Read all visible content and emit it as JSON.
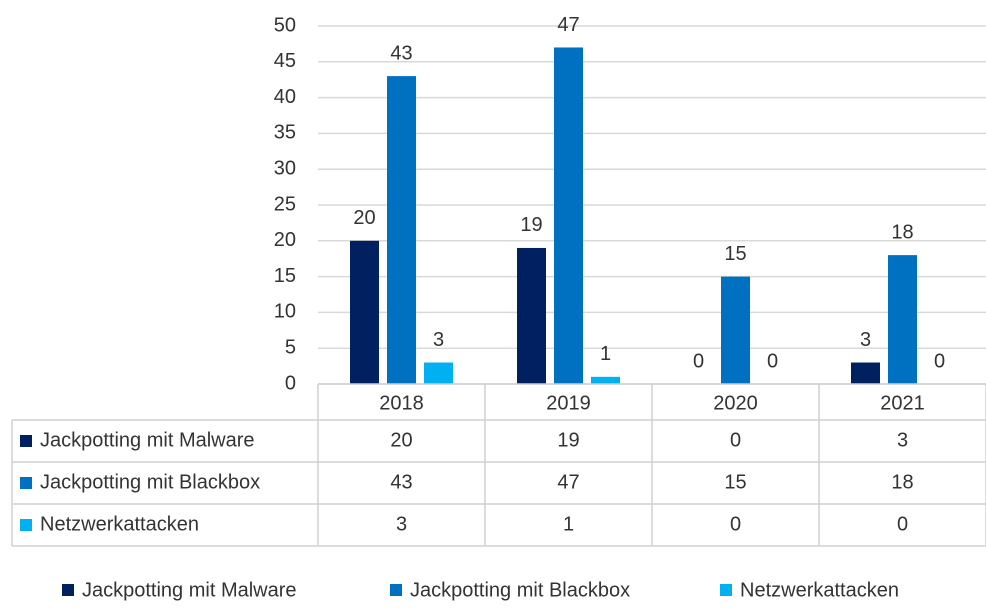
{
  "chart_data": {
    "type": "bar",
    "categories": [
      "2018",
      "2019",
      "2020",
      "2021"
    ],
    "series": [
      {
        "name": "Jackpotting mit Malware",
        "color": "#002060",
        "values": [
          20,
          19,
          0,
          3
        ]
      },
      {
        "name": "Jackpotting mit Blackbox",
        "color": "#0070c0",
        "values": [
          43,
          47,
          15,
          18
        ]
      },
      {
        "name": "Netzwerkattacken",
        "color": "#00b0f0",
        "values": [
          3,
          1,
          0,
          0
        ]
      }
    ],
    "ylim": [
      0,
      50
    ],
    "yticks": [
      0,
      5,
      10,
      15,
      20,
      25,
      30,
      35,
      40,
      45,
      50
    ],
    "grid": true,
    "legend": "bottom",
    "data_table": true
  }
}
